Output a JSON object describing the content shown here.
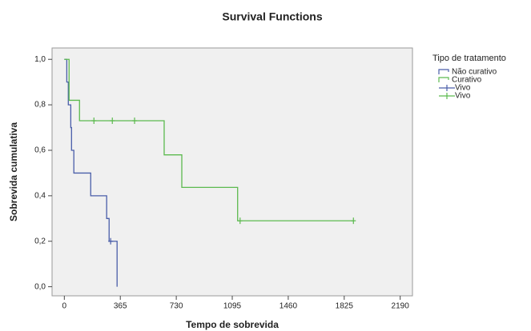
{
  "chart_data": {
    "type": "survival",
    "title": "Survival Functions",
    "x_label": "Tempo de sobrevida",
    "y_label": "Sobrevida cumulativa",
    "legend_title": "Tipo de tratamento",
    "xlim": [
      -80,
      2270
    ],
    "ylim": [
      -0.04,
      1.05
    ],
    "xticks": [
      0,
      365,
      730,
      1095,
      1460,
      1825,
      2190
    ],
    "yticks": [
      {
        "value": 0,
        "label": "0,0"
      },
      {
        "value": 0.2,
        "label": "0,2"
      },
      {
        "value": 0.4,
        "label": "0,4"
      },
      {
        "value": 0.6,
        "label": "0,6"
      },
      {
        "value": 0.8,
        "label": "0,8"
      },
      {
        "value": 1,
        "label": "1,0"
      }
    ],
    "series": [
      {
        "name": "Não curativo",
        "kind": "step",
        "color": "#4a5ea9",
        "x": [
          0,
          16,
          26,
          42,
          47,
          62,
          172,
          276,
          292,
          344
        ],
        "values": [
          1,
          0.9,
          0.8,
          0.7,
          0.6,
          0.5,
          0.4,
          0.3,
          0.2,
          0
        ]
      },
      {
        "name": "Curativo",
        "kind": "step",
        "color": "#5cba4f",
        "x": [
          0,
          31,
          99,
          651,
          766,
          1130,
          1885
        ],
        "values": [
          1,
          0.82,
          0.73,
          0.58,
          0.437,
          0.29,
          0.29
        ]
      },
      {
        "name": "Vivo",
        "kind": "censor",
        "color": "#4a5ea9",
        "x": [
          302
        ],
        "values": [
          0.2
        ]
      },
      {
        "name": "Vivo",
        "kind": "censor",
        "color": "#5cba4f",
        "x": [
          193,
          313,
          458,
          1146,
          1885
        ],
        "values": [
          0.73,
          0.73,
          0.73,
          0.29,
          0.29
        ]
      }
    ]
  }
}
